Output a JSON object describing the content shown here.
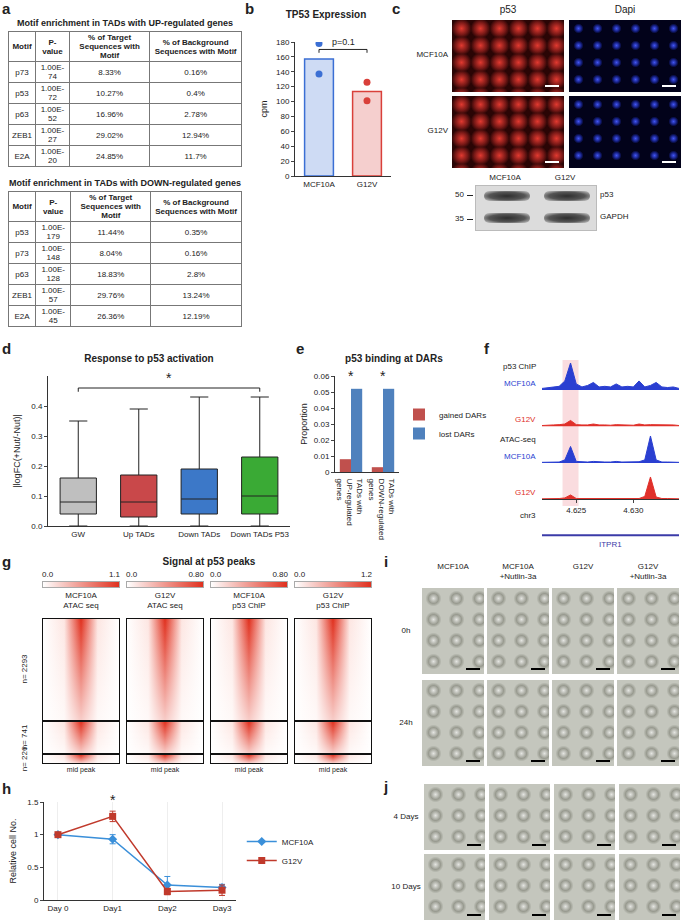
{
  "panel_labels": [
    "a",
    "b",
    "c",
    "d",
    "e",
    "f",
    "g",
    "h",
    "i",
    "j"
  ],
  "tables": [
    {
      "title": "Motif enrichment in TADs with UP-regulated genes",
      "columns": [
        "Motif",
        "P-value",
        "% of Target Sequences with Motif",
        "% of Background Sequences with Motif"
      ],
      "rows": [
        [
          "p73",
          "1.00E-74",
          "8.33%",
          "0.16%"
        ],
        [
          "p53",
          "1.00E-72",
          "10.27%",
          "0.4%"
        ],
        [
          "p63",
          "1.00E-52",
          "16.96%",
          "2.78%"
        ],
        [
          "ZEB1",
          "1.00E-27",
          "29.02%",
          "12.94%"
        ],
        [
          "E2A",
          "1.00E-20",
          "24.85%",
          "11.7%"
        ]
      ]
    },
    {
      "title": "Motif enrichment in TADs with DOWN-regulated genes",
      "columns": [
        "Motif",
        "P-value",
        "% of Target Sequences with Motif",
        "% of Background Sequences with Motif"
      ],
      "rows": [
        [
          "p53",
          "1.00E-179",
          "11.44%",
          "0.35%"
        ],
        [
          "p73",
          "1.00E-148",
          "8.04%",
          "0.16%"
        ],
        [
          "p63",
          "1.00E-128",
          "18.83%",
          "2.8%"
        ],
        [
          "ZEB1",
          "1.00E-57",
          "29.76%",
          "13.24%"
        ],
        [
          "E2A",
          "1.00E-45",
          "26.36%",
          "12.19%"
        ]
      ]
    }
  ],
  "microscopy": {
    "channels": [
      "p53",
      "Dapi"
    ],
    "rows": [
      "MCF10A",
      "G12V"
    ]
  },
  "blot": {
    "lanes": [
      "MCF10A",
      "G12V"
    ],
    "bands": [
      "p53",
      "GAPDH"
    ],
    "markers": [
      50,
      35
    ]
  },
  "chart_data": [
    {
      "panel": "b",
      "type": "bar",
      "title": "TP53 Expression",
      "categories": [
        "MCF10A",
        "G12V"
      ],
      "values": [
        157,
        113.5
      ],
      "points": [
        [
          178,
          137
        ],
        [
          126,
          101
        ]
      ],
      "colors": [
        "#3b6fd4",
        "#d9403a"
      ],
      "ylabel": "cpm",
      "ylim": [
        0,
        180
      ],
      "yticks": [
        0,
        20,
        40,
        60,
        80,
        100,
        120,
        140,
        160,
        180
      ],
      "annotations": [
        {
          "text": "p=0.1",
          "between": [
            "MCF10A",
            "G12V"
          ],
          "y": 170
        }
      ]
    },
    {
      "panel": "d",
      "type": "box",
      "title": "Response to p53 activation",
      "categories": [
        "GW",
        "Up TADs",
        "Down TADs",
        "Down TADs P53"
      ],
      "boxes": [
        {
          "lower": 0,
          "q1": 0.04,
          "median": 0.08,
          "q3": 0.16,
          "upper": 0.35
        },
        {
          "lower": 0,
          "q1": 0.03,
          "median": 0.08,
          "q3": 0.17,
          "upper": 0.39
        },
        {
          "lower": 0,
          "q1": 0.04,
          "median": 0.09,
          "q3": 0.19,
          "upper": 0.43
        },
        {
          "lower": 0,
          "q1": 0.04,
          "median": 0.1,
          "q3": 0.23,
          "upper": 0.43
        }
      ],
      "colors": [
        "#bfbfbf",
        "#c9484a",
        "#3c78c8",
        "#3aaa35"
      ],
      "ylabel": "|logFC(+Nut/-Nut)|",
      "ylim": [
        0,
        0.5
      ],
      "yticks": [
        {
          "value": 0,
          "label": "0.0"
        },
        0.1,
        0.2,
        0.3,
        0.4
      ],
      "annotations": [
        {
          "text": "*",
          "between": [
            "GW",
            "Down TADs P53"
          ],
          "y": 0.46
        }
      ]
    },
    {
      "panel": "e",
      "type": "bar",
      "title": "p53 binding at DARs",
      "categories": [
        "TADs with UP-regulated genes",
        "TADs with DOWN-regulated genes"
      ],
      "series": [
        {
          "name": "gained DARs",
          "color": "#c0504d",
          "values": [
            0.008,
            0.003
          ]
        },
        {
          "name": "lost DARs",
          "color": "#4f81bd",
          "values": [
            0.052,
            0.052
          ]
        }
      ],
      "ylabel": "Proportion",
      "ylim": [
        0,
        0.06
      ],
      "yticks": [
        0,
        0.01,
        0.02,
        0.03,
        0.04,
        0.05,
        0.06
      ],
      "legend": "right",
      "annotations": [
        {
          "text": "*",
          "at": "TADs with UP-regulated genes",
          "y": 0.054
        },
        {
          "text": "*",
          "at": "TADs with DOWN-regulated genes",
          "y": 0.054
        }
      ]
    },
    {
      "panel": "f",
      "type": "area",
      "x": [
        4.622,
        4.6225,
        4.623,
        4.6235,
        4.624,
        4.6245,
        4.625,
        4.6255,
        4.626,
        4.6265,
        4.627,
        4.6275,
        4.628,
        4.6285,
        4.629,
        4.6295,
        4.63,
        4.6305,
        4.631,
        4.6315,
        4.632,
        4.6325,
        4.633,
        4.6335,
        4.634
      ],
      "tracks": [
        {
          "group": "p53 ChIP",
          "name": "MCF10A",
          "color": "#2a3fd1",
          "values": [
            0.05,
            0.08,
            0.1,
            0.12,
            0.3,
            0.9,
            0.2,
            0.1,
            0.15,
            0.25,
            0.1,
            0.12,
            0.1,
            0.2,
            0.1,
            0.12,
            0.1,
            0.3,
            0.1,
            0.15,
            0.25,
            0.1,
            0.08,
            0.1,
            0.05
          ]
        },
        {
          "group": "p53 ChIP",
          "name": "G12V",
          "color": "#e0302a",
          "values": [
            0.03,
            0.05,
            0.05,
            0.06,
            0.08,
            0.2,
            0.06,
            0.05,
            0.05,
            0.08,
            0.05,
            0.05,
            0.04,
            0.06,
            0.05,
            0.05,
            0.04,
            0.08,
            0.05,
            0.06,
            0.06,
            0.05,
            0.04,
            0.05,
            0.03
          ]
        },
        {
          "group": "ATAC-seq",
          "name": "MCF10A",
          "color": "#2a3fd1",
          "values": [
            0.02,
            0.03,
            0.03,
            0.03,
            0.1,
            0.55,
            0.05,
            0.03,
            0.03,
            0.05,
            0.03,
            0.03,
            0.03,
            0.05,
            0.03,
            0.03,
            0.03,
            0.04,
            0.1,
            0.9,
            0.1,
            0.03,
            0.03,
            0.03,
            0.02
          ]
        },
        {
          "group": "ATAC-seq",
          "name": "G12V",
          "color": "#e0302a",
          "values": [
            0.02,
            0.02,
            0.03,
            0.03,
            0.05,
            0.15,
            0.03,
            0.03,
            0.03,
            0.03,
            0.03,
            0.03,
            0.03,
            0.03,
            0.03,
            0.03,
            0.03,
            0.03,
            0.1,
            0.75,
            0.08,
            0.03,
            0.03,
            0.03,
            0.02
          ]
        }
      ],
      "xlim": [
        4.622,
        4.634
      ],
      "xticks": [
        4.625,
        {
          "value": 4.63,
          "label": "4.630"
        }
      ],
      "ylim": [
        0,
        1
      ],
      "tick_labels": "x",
      "xlabel": "chr3",
      "gene": "ITPR1",
      "highlight": [
        4.6238,
        4.6252
      ]
    },
    {
      "panel": "h",
      "type": "line",
      "categories": [
        "Day 0",
        "Day1",
        "Day2",
        "Day3"
      ],
      "series": [
        {
          "name": "MCF10A",
          "color": "#3a8fd9",
          "marker": "diamond",
          "values": [
            1,
            0.93,
            0.23,
            0.19
          ],
          "errors": [
            0.02,
            0.07,
            0.13,
            0.05
          ]
        },
        {
          "name": "G12V",
          "color": "#c0392b",
          "marker": "square",
          "values": [
            1,
            1.28,
            0.13,
            0.15
          ],
          "errors": [
            0.02,
            0.08,
            0.05,
            0.08
          ]
        }
      ],
      "ylabel": "Relative cell No.",
      "ylim": [
        0,
        1.5
      ],
      "yticks": [
        0,
        0.5,
        1,
        1.5
      ],
      "legend": "right",
      "annotations": [
        {
          "text": "*",
          "at": "Day1",
          "y": 1.38
        }
      ]
    }
  ],
  "heatmap": {
    "title": "Signal at p53 peaks",
    "columns": [
      {
        "header": [
          "MCF10A",
          "ATAC seq"
        ],
        "scale": [
          {
            "value": 0,
            "label": "0.0"
          },
          1.1
        ]
      },
      {
        "header": [
          "G12V",
          "ATAC seq"
        ],
        "scale": [
          {
            "value": 0,
            "label": "0.0"
          },
          {
            "value": 0.8,
            "label": "0.80"
          }
        ]
      },
      {
        "header": [
          "MCF10A",
          "p53 ChIP"
        ],
        "scale": [
          {
            "value": 0,
            "label": "0.0"
          },
          {
            "value": 0.8,
            "label": "0.80"
          }
        ]
      },
      {
        "header": [
          "G12V",
          "p53 ChIP"
        ],
        "scale": [
          {
            "value": 0,
            "label": "0.0"
          },
          1.2
        ]
      }
    ],
    "groups": [
      {
        "label": "n= 2293",
        "n": 2293
      },
      {
        "label": "n= 741",
        "n": 741
      },
      {
        "label": "n= 226",
        "n": 226
      }
    ],
    "xlabel": "mid peak"
  },
  "migration": {
    "columns": [
      [
        "MCF10A"
      ],
      [
        "MCF10A",
        "+Nutlin-3a"
      ],
      [
        "G12V"
      ],
      [
        "G12V",
        "+Nutlin-3a"
      ]
    ],
    "rows": [
      "0h",
      "24h"
    ]
  },
  "spheroids": {
    "rows": [
      "4 Days",
      "10 Days"
    ]
  }
}
